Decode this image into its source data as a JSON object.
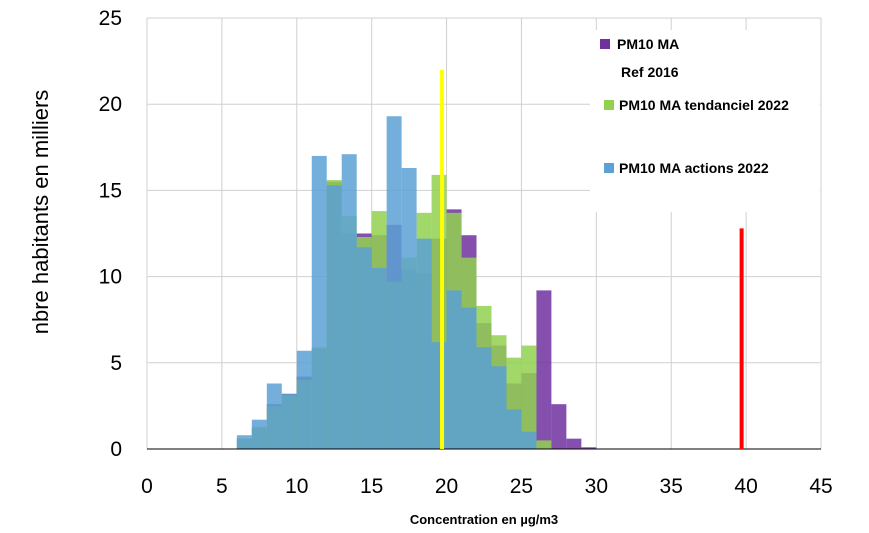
{
  "chart_data": {
    "type": "bar",
    "title": "",
    "xlabel": "Concentration en µg/m3",
    "ylabel": "nbre habitants en milliers",
    "xlim": [
      0,
      45
    ],
    "ylim": [
      0,
      25
    ],
    "x_ticks": [
      "0",
      "5",
      "10",
      "15",
      "20",
      "25",
      "30",
      "35",
      "40",
      "45"
    ],
    "y_ticks": [
      "0",
      "5",
      "10",
      "15",
      "20",
      "25"
    ],
    "bin_width": 1,
    "grid": true,
    "legend_position": "top-right",
    "reference_lines": [
      {
        "x": 19.7,
        "height": 22,
        "color": "#ffff00"
      },
      {
        "x": 39.7,
        "height": 12.8,
        "color": "#ff0000"
      }
    ],
    "bin_starts": [
      6,
      7,
      8,
      9,
      10,
      11,
      12,
      13,
      14,
      15,
      16,
      17,
      18,
      19,
      20,
      21,
      22,
      23,
      24,
      25,
      26,
      27,
      28,
      29
    ],
    "series": [
      {
        "name": "PM10 MA",
        "name_line2": "Ref 2016",
        "color": "#7030a0",
        "values": [
          0.6,
          1.2,
          2.6,
          3.2,
          4.2,
          5.8,
          15.5,
          12.5,
          12.5,
          12.4,
          13.0,
          10.4,
          10.2,
          12.2,
          13.9,
          12.4,
          7.3,
          6.0,
          3.8,
          4.4,
          9.2,
          2.6,
          0.6,
          0.1
        ]
      },
      {
        "name": "PM10 MA tendanciel  2022",
        "color": "#92d050",
        "values": [
          0.6,
          1.3,
          2.5,
          3.1,
          4.0,
          5.9,
          15.6,
          13.5,
          12.3,
          13.8,
          9.7,
          11.1,
          13.7,
          15.9,
          13.7,
          11.1,
          8.3,
          6.6,
          5.3,
          6.0,
          0.5,
          0,
          0,
          0
        ]
      },
      {
        "name": "PM10 MA actions 2022",
        "color": "#5aa1d4",
        "values": [
          0.8,
          1.7,
          3.8,
          3.2,
          5.7,
          17.0,
          15.3,
          17.1,
          11.7,
          10.5,
          19.3,
          16.3,
          12.2,
          6.2,
          9.2,
          8.2,
          5.9,
          4.8,
          2.3,
          1.0,
          0,
          0,
          0,
          0
        ]
      }
    ]
  }
}
